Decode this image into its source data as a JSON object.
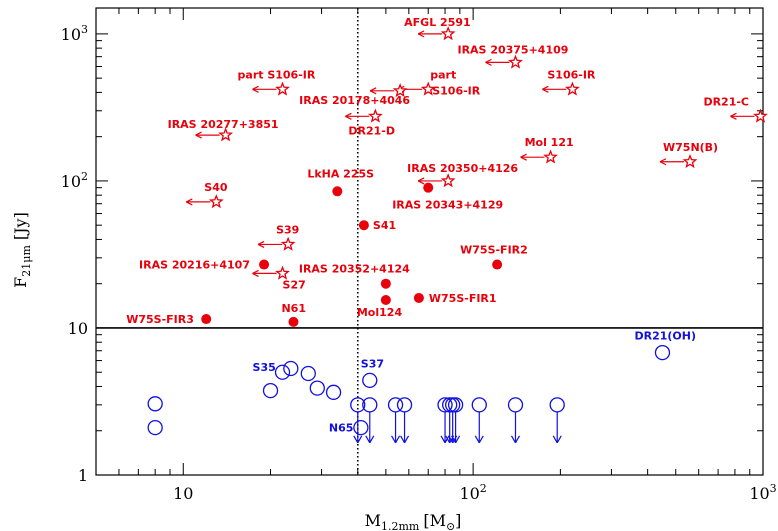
{
  "chart_data": {
    "type": "scatter",
    "title": "",
    "xlabel": "M",
    "xlabel_sub": "1.2mm",
    "xlabel_unit": "[M",
    "xlabel_unit_sub": "⊙",
    "xlabel_unit_end": "]",
    "ylabel": "F",
    "ylabel_sub": "21μm",
    "ylabel_unit": "[Jy]",
    "x_scale": "log",
    "y_scale": "log",
    "xlim": [
      5,
      1000
    ],
    "ylim": [
      1,
      1500
    ],
    "x_ticks": [
      {
        "value": 10,
        "label": "10"
      },
      {
        "value": 100,
        "label": "10²"
      },
      {
        "value": 1000,
        "label": "10³"
      }
    ],
    "y_ticks": [
      {
        "value": 1,
        "label": "1"
      },
      {
        "value": 10,
        "label": "10"
      },
      {
        "value": 100,
        "label": "10²"
      },
      {
        "value": 1000,
        "label": "10³"
      }
    ],
    "reference_lines": [
      {
        "orientation": "vertical",
        "value": 40,
        "style": "dotted"
      },
      {
        "orientation": "horizontal",
        "value": 10,
        "style": "solid"
      }
    ],
    "colors": {
      "red": "#e8000b",
      "blue": "#1010e0",
      "axis": "#000000"
    },
    "series": [
      {
        "marker": "filled-circle",
        "color": "red",
        "points": [
          {
            "label": "LkHA 225S",
            "x": 34,
            "y": 85
          },
          {
            "label": "IRAS 20343+4129",
            "x": 70,
            "y": 90
          },
          {
            "label": "S41",
            "x": 42,
            "y": 50
          },
          {
            "label": "W75S-FIR2",
            "x": 121,
            "y": 27
          },
          {
            "label": "IRAS 20216+4107",
            "x": 19,
            "y": 27
          },
          {
            "label": "IRAS 20352+4124",
            "x": 50,
            "y": 20
          },
          {
            "label": "W75S-FIR1",
            "x": 65,
            "y": 16
          },
          {
            "label": "Mol124",
            "x": 50,
            "y": 15.5
          },
          {
            "label": "W75S-FIR3",
            "x": 12,
            "y": 11.5
          },
          {
            "label": "N61",
            "x": 24,
            "y": 11
          }
        ]
      },
      {
        "marker": "star-upper-limit",
        "color": "red",
        "points": [
          {
            "label": "AFGL 2591",
            "x": 82,
            "y": 1000
          },
          {
            "label": "IRAS 20375+4109",
            "x": 140,
            "y": 640
          },
          {
            "label": "part S106-IR",
            "x": 22,
            "y": 420
          },
          {
            "label": "S106-IR",
            "x": 220,
            "y": 420
          },
          {
            "label": "part S106-IR",
            "x": 70,
            "y": 420
          },
          {
            "label": "IRAS 20178+4046",
            "x": 56,
            "y": 410
          },
          {
            "label": "DR21-D",
            "x": 46,
            "y": 275
          },
          {
            "label": "DR21-C",
            "x": 980,
            "y": 275
          },
          {
            "label": "IRAS 20277+3851",
            "x": 14,
            "y": 205
          },
          {
            "label": "Mol 121",
            "x": 185,
            "y": 145
          },
          {
            "label": "W75N(B)",
            "x": 560,
            "y": 135
          },
          {
            "label": "IRAS 20350+4126",
            "x": 82,
            "y": 100
          },
          {
            "label": "S40",
            "x": 13,
            "y": 72
          },
          {
            "label": "S39",
            "x": 23,
            "y": 37
          },
          {
            "label": "S27",
            "x": 22,
            "y": 23.5
          }
        ]
      },
      {
        "marker": "open-circle",
        "color": "blue",
        "points": [
          {
            "label": "DR21(OH)",
            "x": 450,
            "y": 6.8
          },
          {
            "label": "S35",
            "x": 22,
            "y": 5
          },
          {
            "label": "S35",
            "x": 23.5,
            "y": 5.3
          },
          {
            "label": "",
            "x": 27,
            "y": 4.9
          },
          {
            "label": "S37",
            "x": 44,
            "y": 4.4
          },
          {
            "label": "",
            "x": 29,
            "y": 3.9
          },
          {
            "label": "",
            "x": 20,
            "y": 3.75
          },
          {
            "label": "",
            "x": 33,
            "y": 3.65
          },
          {
            "label": "",
            "x": 8,
            "y": 3.05
          },
          {
            "label": "",
            "x": 8,
            "y": 2.1
          },
          {
            "label": "N65",
            "x": 41,
            "y": 2.1
          }
        ]
      },
      {
        "marker": "open-circle-upper-limit",
        "color": "blue",
        "points": [
          {
            "label": "",
            "x": 40,
            "y": 3.0
          },
          {
            "label": "",
            "x": 44,
            "y": 3.0
          },
          {
            "label": "",
            "x": 54,
            "y": 3.0
          },
          {
            "label": "",
            "x": 58,
            "y": 3.0
          },
          {
            "label": "",
            "x": 80,
            "y": 3.0
          },
          {
            "label": "",
            "x": 83,
            "y": 3.0
          },
          {
            "label": "",
            "x": 85,
            "y": 3.0
          },
          {
            "label": "",
            "x": 87,
            "y": 3.0
          },
          {
            "label": "",
            "x": 105,
            "y": 3.0
          },
          {
            "label": "",
            "x": 140,
            "y": 3.0
          },
          {
            "label": "",
            "x": 195,
            "y": 3.0
          }
        ]
      }
    ],
    "annotations": [
      {
        "text": "AFGL 2591",
        "color": "red",
        "anchor_x": 82,
        "anchor_y": 1000,
        "dx": -44,
        "dy": -8
      },
      {
        "text": "IRAS 20375+4109",
        "color": "red",
        "anchor_x": 140,
        "anchor_y": 640,
        "dx": -58,
        "dy": -9
      },
      {
        "text": "part S106-IR",
        "color": "red",
        "anchor_x": 22,
        "anchor_y": 420,
        "dx": -45,
        "dy": -11
      },
      {
        "text": "part",
        "color": "red",
        "anchor_x": 70,
        "anchor_y": 420,
        "dx": 2,
        "dy": -11
      },
      {
        "text": "S106-IR",
        "color": "red",
        "anchor_x": 70,
        "anchor_y": 420,
        "dx": 4,
        "dy": 5
      },
      {
        "text": "S106-IR",
        "color": "red",
        "anchor_x": 220,
        "anchor_y": 420,
        "dx": -25,
        "dy": -11
      },
      {
        "text": "IRAS 20178+4046",
        "color": "red",
        "anchor_x": 56,
        "anchor_y": 410,
        "dx": -101,
        "dy": 13
      },
      {
        "text": "DR21-D",
        "color": "red",
        "anchor_x": 46,
        "anchor_y": 275,
        "dx": -27,
        "dy": 18
      },
      {
        "text": "DR21-C",
        "color": "red",
        "anchor_x": 980,
        "anchor_y": 275,
        "dx": -57,
        "dy": -11
      },
      {
        "text": "IRAS 20277+3851",
        "color": "red",
        "anchor_x": 14,
        "anchor_y": 205,
        "dx": -58,
        "dy": -7
      },
      {
        "text": "Mol 121",
        "color": "red",
        "anchor_x": 185,
        "anchor_y": 145,
        "dx": -26,
        "dy": -11
      },
      {
        "text": "W75N(B)",
        "color": "red",
        "anchor_x": 560,
        "anchor_y": 135,
        "dx": -27,
        "dy": -11
      },
      {
        "text": "IRAS 20350+4126",
        "color": "red",
        "anchor_x": 82,
        "anchor_y": 100,
        "dx": -41,
        "dy": -9
      },
      {
        "text": "S40",
        "color": "red",
        "anchor_x": 13,
        "anchor_y": 72,
        "dx": -12,
        "dy": -11
      },
      {
        "text": "S39",
        "color": "red",
        "anchor_x": 23,
        "anchor_y": 37,
        "dx": -12,
        "dy": -11
      },
      {
        "text": "S27",
        "color": "red",
        "anchor_x": 22,
        "anchor_y": 23.5,
        "dx": 0,
        "dy": 15
      },
      {
        "text": "LkHA 225S",
        "color": "red",
        "anchor_x": 34,
        "anchor_y": 85,
        "dx": -30,
        "dy": -14
      },
      {
        "text": "IRAS 20343+4129",
        "color": "red",
        "anchor_x": 70,
        "anchor_y": 90,
        "dx": -36,
        "dy": 21
      },
      {
        "text": "S41",
        "color": "red",
        "anchor_x": 42,
        "anchor_y": 50,
        "dx": 9,
        "dy": 4
      },
      {
        "text": "W75S-FIR2",
        "color": "red",
        "anchor_x": 121,
        "anchor_y": 27,
        "dx": -37,
        "dy": -11
      },
      {
        "text": "IRAS 20216+4107",
        "color": "red",
        "anchor_x": 19,
        "anchor_y": 27,
        "dx": -125,
        "dy": 4
      },
      {
        "text": "IRAS 20352+4124",
        "color": "red",
        "anchor_x": 50,
        "anchor_y": 20,
        "dx": -87,
        "dy": -11
      },
      {
        "text": "W75S-FIR1",
        "color": "red",
        "anchor_x": 65,
        "anchor_y": 16,
        "dx": 10,
        "dy": 4
      },
      {
        "text": "Mol124",
        "color": "red",
        "anchor_x": 50,
        "anchor_y": 15.5,
        "dx": -29,
        "dy": 16
      },
      {
        "text": "W75S-FIR3",
        "color": "red",
        "anchor_x": 12,
        "anchor_y": 11.5,
        "dx": -80,
        "dy": 4
      },
      {
        "text": "N61",
        "color": "red",
        "anchor_x": 24,
        "anchor_y": 11,
        "dx": -12,
        "dy": -10
      },
      {
        "text": "DR21(OH)",
        "color": "blue",
        "anchor_x": 450,
        "anchor_y": 6.8,
        "dx": -28,
        "dy": -13
      },
      {
        "text": "S35",
        "color": "blue",
        "anchor_x": 22,
        "anchor_y": 5,
        "dx": -30,
        "dy": -1
      },
      {
        "text": "S37",
        "color": "blue",
        "anchor_x": 44,
        "anchor_y": 4.4,
        "dx": -9,
        "dy": -13
      },
      {
        "text": "N65",
        "color": "blue",
        "anchor_x": 41,
        "anchor_y": 2.1,
        "dx": -32,
        "dy": 4
      }
    ]
  }
}
